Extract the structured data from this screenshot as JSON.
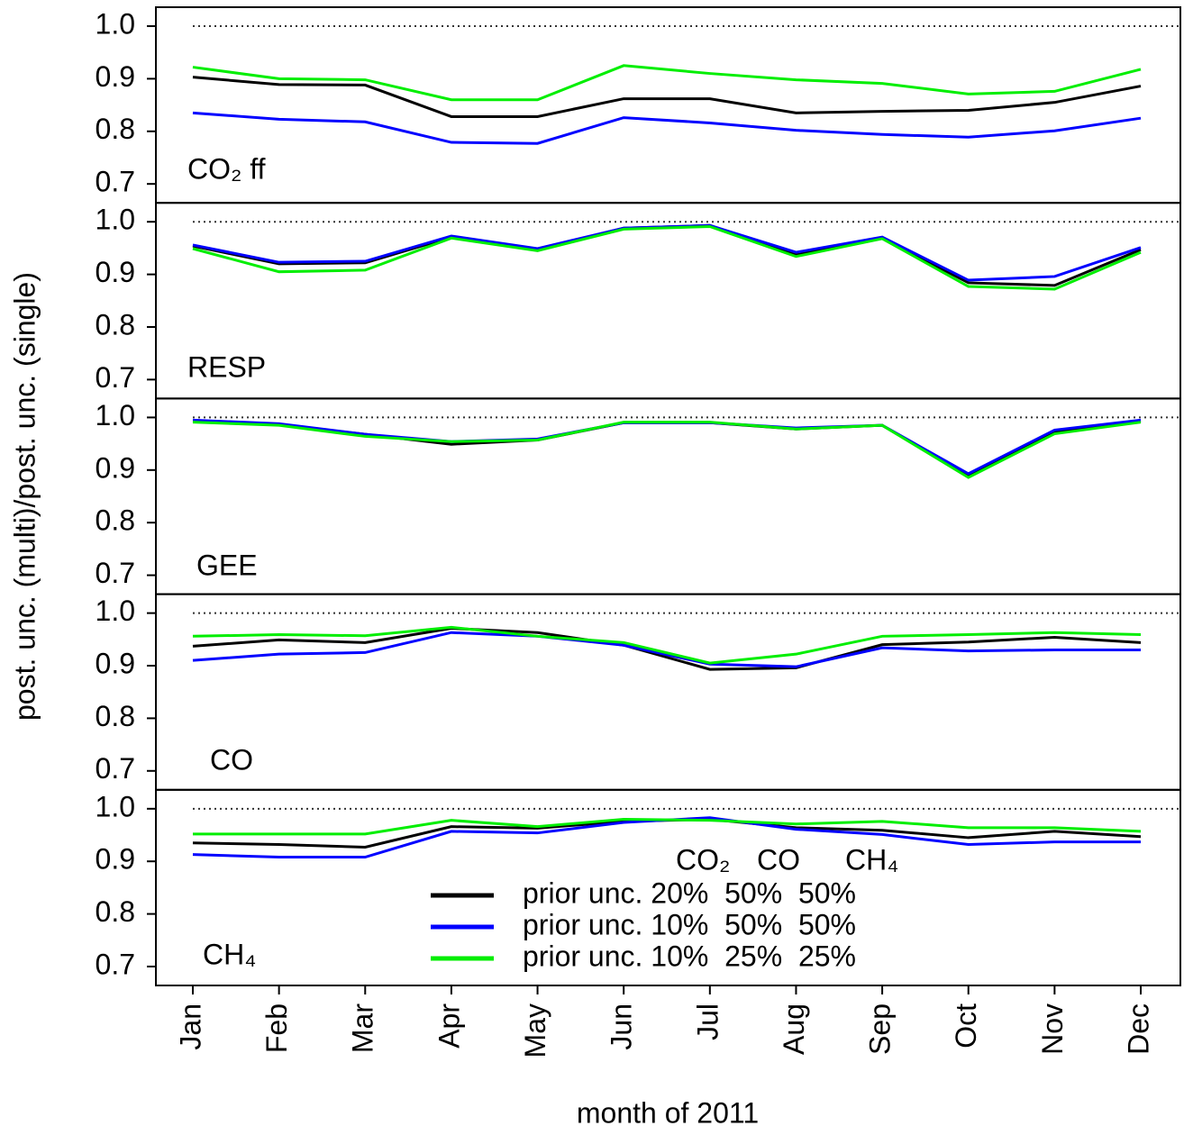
{
  "chart_data": [
    {
      "type": "line",
      "panel_label": "CO₂ ff",
      "ylabel": "post. unc. (multi)/post. unc. (single)",
      "ylim": [
        0.664,
        1.036
      ],
      "yticks": [
        0.7,
        0.8,
        0.9,
        {
          "value": 1,
          "label": "1.0"
        }
      ],
      "hline": 1,
      "series": [
        {
          "color": "#000000",
          "values": [
            0.903,
            0.889,
            0.888,
            0.828,
            0.828,
            0.862,
            0.862,
            0.835,
            0.838,
            0.84,
            0.855,
            0.886
          ]
        },
        {
          "color": "#0000ff",
          "values": [
            0.835,
            0.823,
            0.818,
            0.779,
            0.777,
            0.826,
            0.816,
            0.802,
            0.794,
            0.789,
            0.801,
            0.825
          ]
        },
        {
          "color": "#00ee00",
          "values": [
            0.922,
            0.9,
            0.898,
            0.86,
            0.86,
            0.925,
            0.91,
            0.898,
            0.891,
            0.871,
            0.876,
            0.918
          ]
        }
      ]
    },
    {
      "type": "line",
      "panel_label": "RESP",
      "ylim": [
        0.664,
        1.036
      ],
      "yticks": [
        0.7,
        0.8,
        0.9,
        {
          "value": 1,
          "label": "1.0"
        }
      ],
      "hline": 1,
      "series": [
        {
          "color": "#000000",
          "values": [
            0.954,
            0.92,
            0.922,
            0.971,
            0.947,
            0.988,
            0.993,
            0.937,
            0.969,
            0.884,
            0.879,
            0.947
          ]
        },
        {
          "color": "#0000ff",
          "values": [
            0.956,
            0.923,
            0.925,
            0.973,
            0.949,
            0.988,
            0.993,
            0.942,
            0.971,
            0.889,
            0.896,
            0.951
          ]
        },
        {
          "color": "#00ee00",
          "values": [
            0.949,
            0.905,
            0.908,
            0.969,
            0.945,
            0.986,
            0.991,
            0.934,
            0.968,
            0.877,
            0.872,
            0.942
          ]
        }
      ]
    },
    {
      "type": "line",
      "panel_label": "GEE",
      "ylim": [
        0.664,
        1.036
      ],
      "yticks": [
        0.7,
        0.8,
        0.9,
        {
          "value": 1,
          "label": "1.0"
        }
      ],
      "hline": 1,
      "series": [
        {
          "color": "#000000",
          "values": [
            0.993,
            0.986,
            0.968,
            0.949,
            0.957,
            0.99,
            0.99,
            0.978,
            0.985,
            0.889,
            0.973,
            0.993
          ]
        },
        {
          "color": "#0000ff",
          "values": [
            0.995,
            0.988,
            0.968,
            0.954,
            0.959,
            0.99,
            0.99,
            0.98,
            0.985,
            0.893,
            0.976,
            0.995
          ]
        },
        {
          "color": "#00ee00",
          "values": [
            0.991,
            0.985,
            0.964,
            0.954,
            0.957,
            0.991,
            0.991,
            0.978,
            0.985,
            0.886,
            0.969,
            0.991
          ]
        }
      ]
    },
    {
      "type": "line",
      "panel_label": "CO",
      "ylim": [
        0.664,
        1.036
      ],
      "yticks": [
        0.7,
        0.8,
        0.9,
        {
          "value": 1,
          "label": "1.0"
        }
      ],
      "hline": 1,
      "series": [
        {
          "color": "#000000",
          "values": [
            0.937,
            0.949,
            0.944,
            0.971,
            0.963,
            0.939,
            0.893,
            0.896,
            0.94,
            0.945,
            0.954,
            0.944
          ]
        },
        {
          "color": "#0000ff",
          "values": [
            0.91,
            0.922,
            0.925,
            0.963,
            0.956,
            0.939,
            0.903,
            0.898,
            0.934,
            0.928,
            0.93,
            0.93
          ]
        },
        {
          "color": "#00ee00",
          "values": [
            0.956,
            0.959,
            0.957,
            0.973,
            0.956,
            0.944,
            0.905,
            0.922,
            0.956,
            0.959,
            0.963,
            0.959
          ]
        }
      ]
    },
    {
      "type": "line",
      "panel_label": "CH₄",
      "xlabel": "month of 2011",
      "categories": [
        "Jan",
        "Feb",
        "Mar",
        "Apr",
        "May",
        "Jun",
        "Jul",
        "Aug",
        "Sep",
        "Oct",
        "Nov",
        "Dec"
      ],
      "ylim": [
        0.664,
        1.036
      ],
      "yticks": [
        0.7,
        0.8,
        0.9,
        {
          "value": 1,
          "label": "1.0"
        }
      ],
      "hline": 1,
      "legend_header": [
        "CO₂",
        "CO",
        "CH₄"
      ],
      "series": [
        {
          "name": "prior unc. 20%  50%  50%",
          "color": "#000000",
          "values": [
            0.935,
            0.932,
            0.927,
            0.966,
            0.963,
            0.976,
            0.98,
            0.964,
            0.959,
            0.945,
            0.957,
            0.947
          ]
        },
        {
          "name": "prior unc. 10%  50%  50%",
          "color": "#0000ff",
          "values": [
            0.913,
            0.908,
            0.908,
            0.957,
            0.954,
            0.974,
            0.983,
            0.961,
            0.951,
            0.932,
            0.937,
            0.937
          ]
        },
        {
          "name": "prior unc. 10%  25%  25%",
          "color": "#00ee00",
          "values": [
            0.952,
            0.952,
            0.952,
            0.978,
            0.966,
            0.98,
            0.978,
            0.971,
            0.976,
            0.964,
            0.964,
            0.957
          ]
        }
      ]
    }
  ]
}
